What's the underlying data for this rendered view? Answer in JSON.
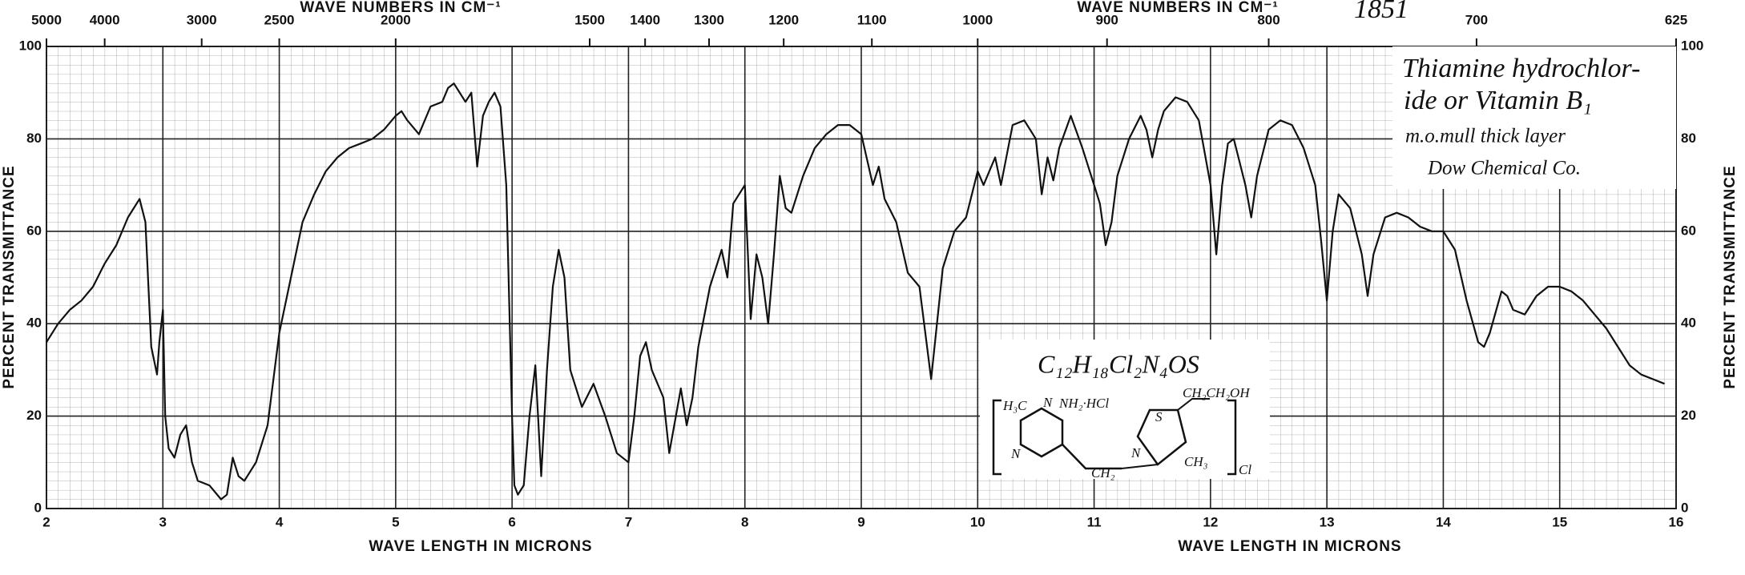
{
  "chart_data": {
    "type": "line",
    "x_label": "WAVE LENGTH IN MICRONS",
    "y_label": "PERCENT TRANSMITTANCE",
    "top_axis": {
      "label": "WAVE NUMBERS IN CM⁻¹",
      "ticks": [
        5000,
        4000,
        3000,
        2500,
        2000,
        1500,
        1400,
        1300,
        1200,
        1100,
        1000,
        900,
        800,
        700,
        625
      ]
    },
    "x": [
      2.0,
      2.1,
      2.2,
      2.3,
      2.4,
      2.5,
      2.6,
      2.7,
      2.8,
      2.85,
      2.9,
      2.95,
      2.97,
      3.0,
      3.02,
      3.05,
      3.1,
      3.15,
      3.2,
      3.25,
      3.3,
      3.4,
      3.5,
      3.55,
      3.6,
      3.65,
      3.7,
      3.8,
      3.9,
      4.0,
      4.1,
      4.2,
      4.3,
      4.4,
      4.5,
      4.6,
      4.7,
      4.8,
      4.9,
      5.0,
      5.05,
      5.1,
      5.2,
      5.3,
      5.4,
      5.45,
      5.5,
      5.6,
      5.65,
      5.7,
      5.75,
      5.8,
      5.85,
      5.9,
      5.95,
      6.0,
      6.02,
      6.05,
      6.1,
      6.15,
      6.2,
      6.25,
      6.3,
      6.35,
      6.4,
      6.45,
      6.5,
      6.6,
      6.7,
      6.8,
      6.9,
      7.0,
      7.05,
      7.1,
      7.15,
      7.2,
      7.3,
      7.35,
      7.45,
      7.5,
      7.55,
      7.6,
      7.7,
      7.8,
      7.85,
      7.9,
      8.0,
      8.05,
      8.1,
      8.15,
      8.2,
      8.25,
      8.3,
      8.35,
      8.4,
      8.5,
      8.6,
      8.7,
      8.8,
      8.9,
      9.0,
      9.1,
      9.15,
      9.2,
      9.3,
      9.4,
      9.5,
      9.6,
      9.7,
      9.8,
      9.9,
      10.0,
      10.05,
      10.15,
      10.2,
      10.3,
      10.4,
      10.5,
      10.55,
      10.6,
      10.65,
      10.7,
      10.8,
      10.9,
      11.0,
      11.05,
      11.1,
      11.15,
      11.2,
      11.3,
      11.4,
      11.45,
      11.5,
      11.55,
      11.6,
      11.7,
      11.8,
      11.9,
      12.0,
      12.05,
      12.1,
      12.15,
      12.2,
      12.3,
      12.35,
      12.4,
      12.5,
      12.6,
      12.7,
      12.8,
      12.9,
      12.95,
      13.0,
      13.05,
      13.1,
      13.2,
      13.3,
      13.35,
      13.4,
      13.5,
      13.6,
      13.7,
      13.8,
      13.9,
      14.0,
      14.1,
      14.2,
      14.3,
      14.35,
      14.4,
      14.5,
      14.55,
      14.6,
      14.7,
      14.8,
      14.9,
      15.0,
      15.1,
      15.2,
      15.3,
      15.4,
      15.5,
      15.6,
      15.7,
      15.8,
      15.9
    ],
    "values": [
      36,
      40,
      43,
      45,
      48,
      53,
      57,
      63,
      67,
      62,
      35,
      29,
      36,
      43,
      20,
      13,
      11,
      16,
      18,
      10,
      6,
      5,
      2,
      3,
      11,
      7,
      6,
      10,
      18,
      38,
      50,
      62,
      68,
      73,
      76,
      78,
      79,
      80,
      82,
      85,
      86,
      84,
      81,
      87,
      88,
      91,
      92,
      88,
      90,
      74,
      85,
      88,
      90,
      87,
      70,
      20,
      5,
      3,
      5,
      20,
      31,
      7,
      30,
      48,
      56,
      50,
      30,
      22,
      27,
      20,
      12,
      10,
      20,
      33,
      36,
      30,
      24,
      12,
      26,
      18,
      24,
      35,
      48,
      56,
      50,
      66,
      70,
      41,
      55,
      50,
      40,
      55,
      72,
      65,
      64,
      72,
      78,
      81,
      83,
      83,
      81,
      70,
      74,
      67,
      62,
      51,
      48,
      28,
      52,
      60,
      63,
      73,
      70,
      76,
      70,
      83,
      84,
      80,
      68,
      76,
      71,
      78,
      85,
      78,
      70,
      66,
      57,
      62,
      72,
      80,
      85,
      82,
      76,
      82,
      86,
      89,
      88,
      84,
      70,
      55,
      70,
      79,
      80,
      70,
      63,
      72,
      82,
      84,
      83,
      78,
      70,
      58,
      45,
      60,
      68,
      65,
      55,
      46,
      55,
      63,
      64,
      63,
      61,
      60,
      60,
      56,
      45,
      36,
      35,
      38,
      47,
      46,
      43,
      42,
      46,
      48,
      48,
      47,
      45,
      42,
      39,
      35,
      31,
      29,
      28,
      27
    ],
    "color": "#111111",
    "xlim": [
      2,
      16
    ],
    "xticks": [
      2,
      3,
      4,
      5,
      6,
      7,
      8,
      9,
      10,
      11,
      12,
      13,
      14,
      15,
      16
    ],
    "ylim": [
      0,
      100
    ],
    "yticks": [
      0,
      20,
      40,
      60,
      80,
      100
    ],
    "grid": true,
    "annotations": [
      "Thiamine hydrochlor-",
      "ide or Vitamin B₁",
      "m.o.mull thick layer",
      "Dow Chemical Co.",
      "1851"
    ],
    "structure": {
      "formula": "C₁₂H₁₈Cl₂N₄OS",
      "labels": [
        "H₃C",
        "N",
        "NH₂·HCl",
        "N",
        "CH₂",
        "N",
        "S",
        "CH₂CH₂OH",
        "CH₃",
        "Cl"
      ]
    }
  }
}
